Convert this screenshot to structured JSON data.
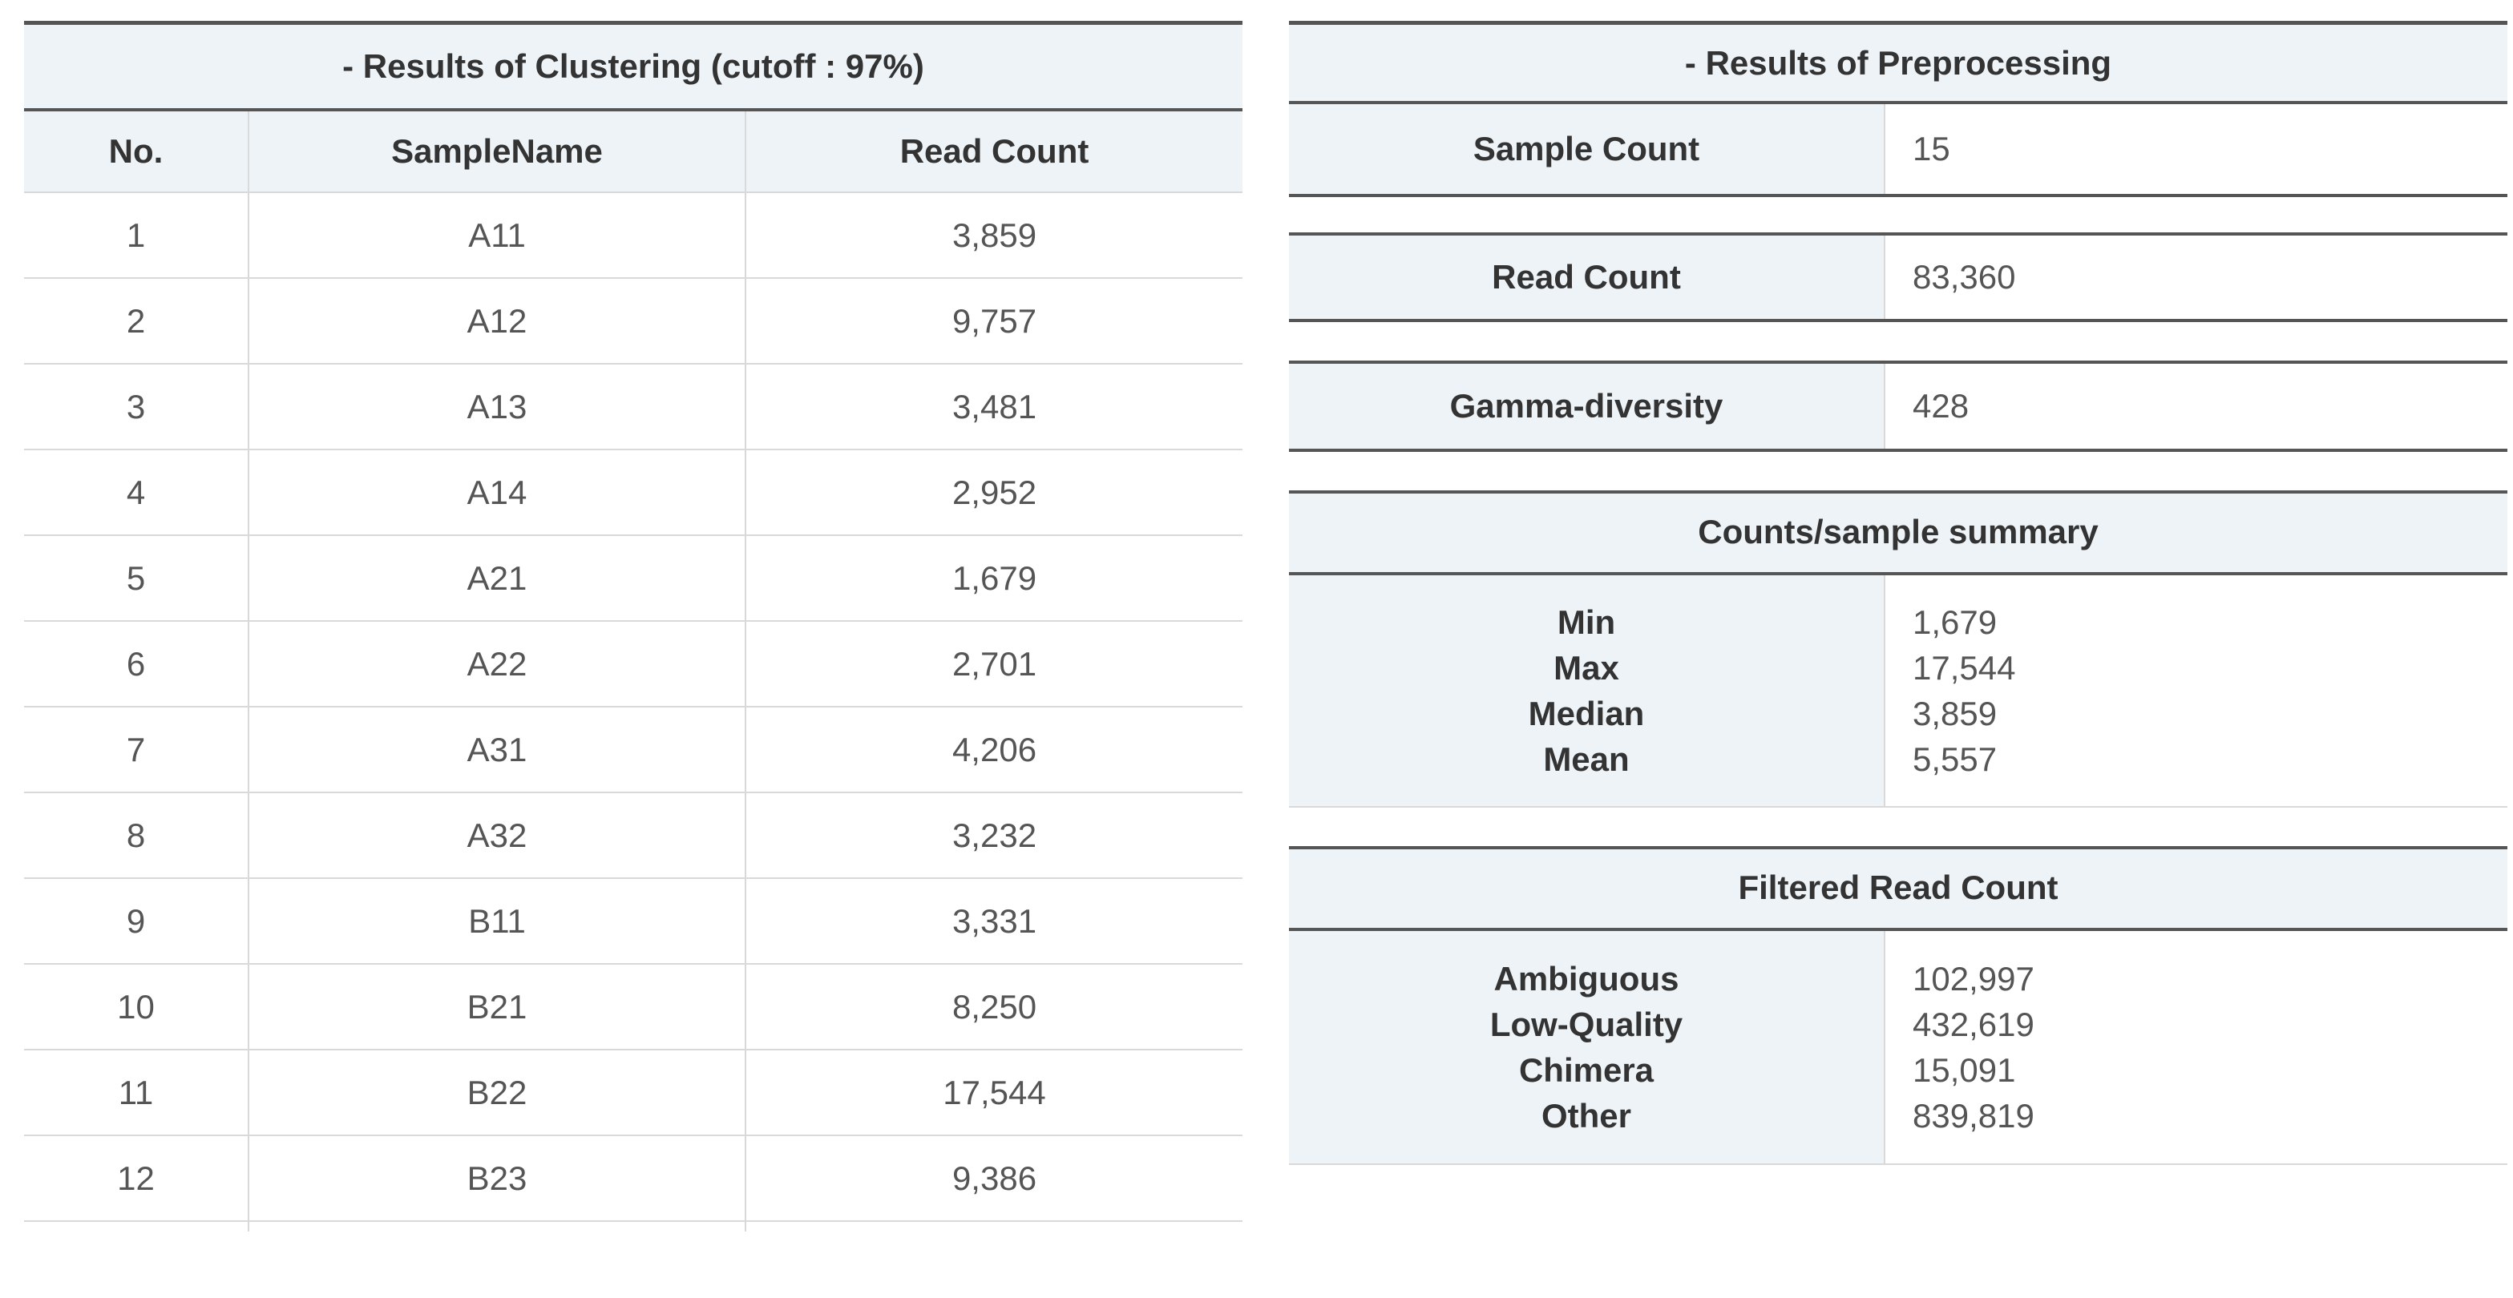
{
  "clustering": {
    "caption": "- Results of Clustering (cutoff : 97%)",
    "headers": {
      "no": "No.",
      "sample": "SampleName",
      "reads": "Read Count"
    },
    "rows": [
      {
        "no": "1",
        "sample": "A11",
        "reads": "3,859"
      },
      {
        "no": "2",
        "sample": "A12",
        "reads": "9,757"
      },
      {
        "no": "3",
        "sample": "A13",
        "reads": "3,481"
      },
      {
        "no": "4",
        "sample": "A14",
        "reads": "2,952"
      },
      {
        "no": "5",
        "sample": "A21",
        "reads": "1,679"
      },
      {
        "no": "6",
        "sample": "A22",
        "reads": "2,701"
      },
      {
        "no": "7",
        "sample": "A31",
        "reads": "4,206"
      },
      {
        "no": "8",
        "sample": "A32",
        "reads": "3,232"
      },
      {
        "no": "9",
        "sample": "B11",
        "reads": "3,331"
      },
      {
        "no": "10",
        "sample": "B21",
        "reads": "8,250"
      },
      {
        "no": "11",
        "sample": "B22",
        "reads": "17,544"
      },
      {
        "no": "12",
        "sample": "B23",
        "reads": "9,386"
      }
    ]
  },
  "preprocessing": {
    "caption": "- Results of Preprocessing",
    "sample_count": {
      "label": "Sample Count",
      "value": "15"
    },
    "read_count": {
      "label": "Read Count",
      "value": "83,360"
    },
    "gamma": {
      "label": "Gamma-diversity",
      "value": "428"
    },
    "summary": {
      "title": "Counts/sample summary",
      "labels": [
        "Min",
        "Max",
        "Median",
        "Mean"
      ],
      "values": [
        "1,679",
        "17,544",
        "3,859",
        "5,557"
      ]
    },
    "filtered": {
      "title": "Filtered Read Count",
      "labels": [
        "Ambiguous",
        "Low-Quality",
        "Chimera",
        "Other"
      ],
      "values": [
        "102,997",
        "432,619",
        "15,091",
        "839,819"
      ]
    }
  }
}
